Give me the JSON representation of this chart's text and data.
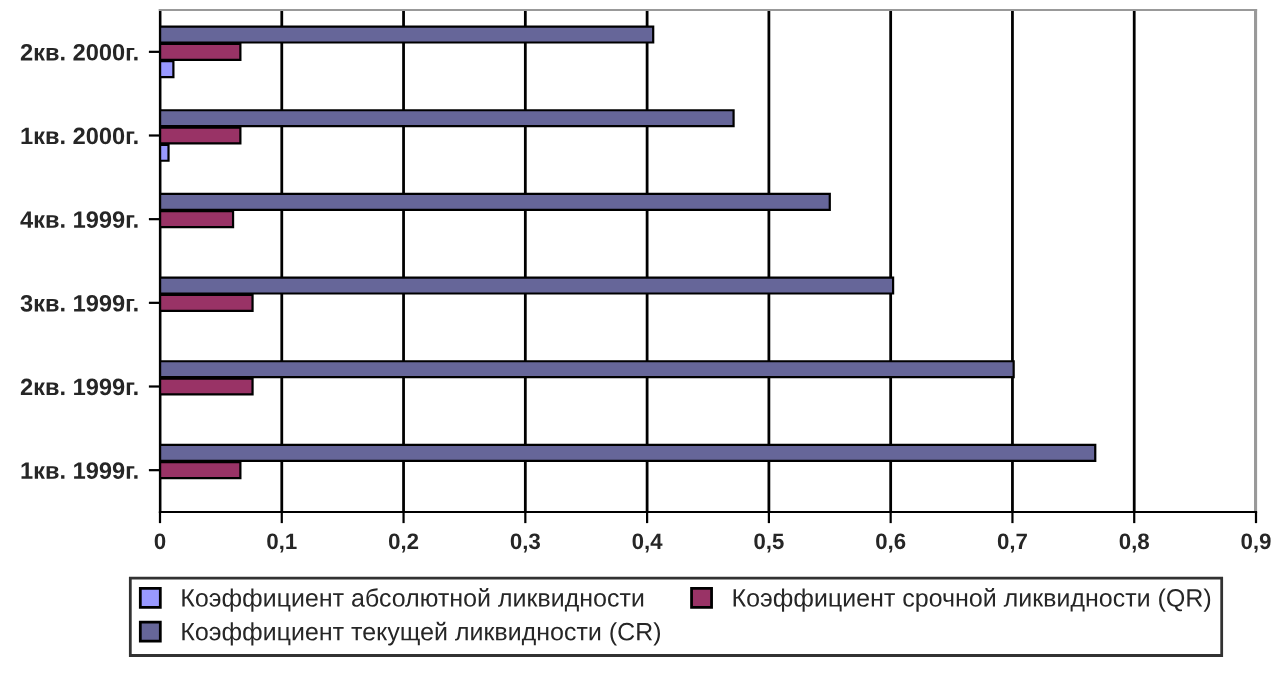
{
  "chart_data": {
    "type": "bar",
    "orientation": "horizontal",
    "categories": [
      "2кв. 2000г.",
      "1кв. 2000г.",
      "4кв. 1999г.",
      "3кв. 1999г.",
      "2кв. 1999г.",
      "1кв. 1999г."
    ],
    "series": [
      {
        "name": "Коэффициент абсолютной ликвидности",
        "color": "#9999ff",
        "values": [
          0.011,
          0.007,
          null,
          null,
          null,
          null
        ]
      },
      {
        "name": "Коэффициент срочной ликвидности (QR)",
        "color": "#993366",
        "values": [
          0.066,
          0.066,
          0.06,
          0.076,
          0.076,
          0.066
        ]
      },
      {
        "name": "Коэффициент текущей ликвидности (CR)",
        "color": "#666699",
        "values": [
          0.405,
          0.471,
          0.55,
          0.602,
          0.701,
          0.768
        ]
      }
    ],
    "xlim": [
      0,
      0.9
    ],
    "xticks": [
      {
        "value": 0,
        "label": "0"
      },
      {
        "value": 0.1,
        "label": "0,1"
      },
      {
        "value": 0.2,
        "label": "0,2"
      },
      {
        "value": 0.3,
        "label": "0,3"
      },
      {
        "value": 0.4,
        "label": "0,4"
      },
      {
        "value": 0.5,
        "label": "0,5"
      },
      {
        "value": 0.6,
        "label": "0,6"
      },
      {
        "value": 0.7,
        "label": "0,7"
      },
      {
        "value": 0.8,
        "label": "0,8"
      },
      {
        "value": 0.9,
        "label": "0,9"
      }
    ],
    "grid": "x",
    "legend": "bottom"
  }
}
